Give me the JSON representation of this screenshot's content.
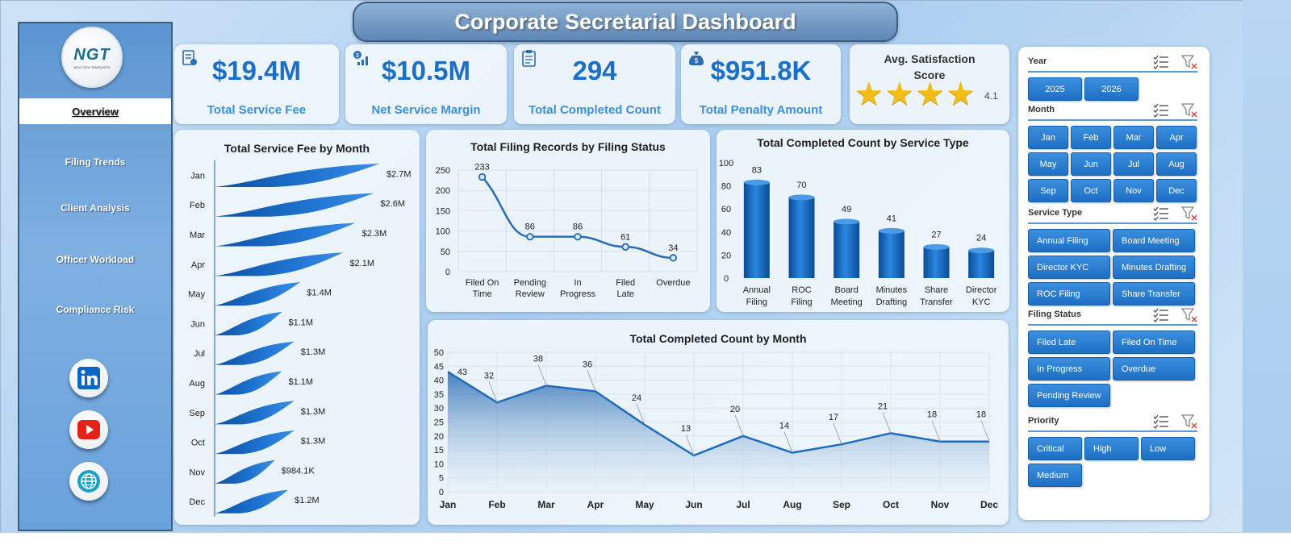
{
  "title": "Corporate Secretarial Dashboard",
  "logo": {
    "text": "NGT",
    "subtext": "NEXT GEN TEMPLATES"
  },
  "nav": [
    "Overview",
    "Filing Trends",
    "Client Analysis",
    "Officer Workload",
    "Compliance Risk"
  ],
  "social_icons": [
    "linkedin-icon",
    "youtube-icon",
    "globe-icon"
  ],
  "kpis": [
    {
      "value": "$19.4M",
      "label": "Total Service Fee",
      "icon": "invoice-icon"
    },
    {
      "value": "$10.5M",
      "label": "Net Service Margin",
      "icon": "money-growth-icon"
    },
    {
      "value": "294",
      "label": "Total Completed Count",
      "icon": "clipboard-icon"
    },
    {
      "value": "$951.8K",
      "label": "Total Penalty Amount",
      "icon": "money-bag-icon"
    }
  ],
  "satisfaction": {
    "title": "Avg. Satisfaction Score",
    "value": "4.1",
    "stars": 4
  },
  "colors": {
    "accent": "#1b6fc8",
    "bar": "#1565c0",
    "line": "#2a6db5",
    "star": "#f3bd16"
  },
  "chart_data": [
    {
      "type": "bar",
      "title": "Total Service Fee by Month",
      "orientation": "horizontal",
      "categories": [
        "Jan",
        "Feb",
        "Mar",
        "Apr",
        "May",
        "Jun",
        "Jul",
        "Aug",
        "Sep",
        "Oct",
        "Nov",
        "Dec"
      ],
      "values": [
        2.7,
        2.6,
        2.3,
        2.1,
        1.4,
        1.1,
        1.3,
        1.1,
        1.3,
        1.3,
        0.9841,
        1.2
      ],
      "labels": [
        "$2.7M",
        "$2.6M",
        "$2.3M",
        "$2.1M",
        "$1.4M",
        "$1.1M",
        "$1.3M",
        "$1.1M",
        "$1.3M",
        "$1.3M",
        "$984.1K",
        "$1.2M"
      ],
      "unit": "$M"
    },
    {
      "type": "line",
      "title": "Total Filing Records by Filing Status",
      "categories": [
        "Filed On Time",
        "Pending Review",
        "In Progress",
        "Filed Late",
        "Overdue"
      ],
      "values": [
        233,
        86,
        86,
        61,
        34
      ],
      "ylim": [
        0,
        250
      ],
      "yticks": [
        0,
        50,
        100,
        150,
        200,
        250
      ],
      "grid": true
    },
    {
      "type": "bar",
      "title": "Total Completed Count  by Service Type",
      "categories": [
        "Annual Filing",
        "ROC Filing",
        "Board Meeting",
        "Minutes Drafting",
        "Share Transfer",
        "Director KYC"
      ],
      "values": [
        83,
        70,
        49,
        41,
        27,
        24
      ],
      "ylim": [
        0,
        100
      ],
      "yticks": [
        0,
        20,
        40,
        60,
        80,
        100
      ]
    },
    {
      "type": "area",
      "title": "Total Completed Count  by Month",
      "categories": [
        "Jan",
        "Feb",
        "Mar",
        "Apr",
        "May",
        "Jun",
        "Jul",
        "Aug",
        "Sep",
        "Oct",
        "Nov",
        "Dec"
      ],
      "values": [
        43,
        32,
        38,
        36,
        24,
        13,
        20,
        14,
        17,
        21,
        18,
        18
      ],
      "ylim": [
        0,
        50
      ],
      "yticks": [
        0,
        5,
        10,
        15,
        20,
        25,
        30,
        35,
        40,
        45,
        50
      ],
      "grid": true
    }
  ],
  "slicers": [
    {
      "label": "Year",
      "items": [
        "2025",
        "2026"
      ]
    },
    {
      "label": "Month",
      "items": [
        "Jan",
        "Feb",
        "Mar",
        "Apr",
        "May",
        "Jun",
        "Jul",
        "Aug",
        "Sep",
        "Oct",
        "Nov",
        "Dec"
      ]
    },
    {
      "label": "Service Type",
      "items": [
        "Annual Filing",
        "Board Meeting",
        "Director KYC",
        "Minutes Drafting",
        "ROC Filing",
        "Share Transfer"
      ]
    },
    {
      "label": "Filing Status",
      "items": [
        "Filed Late",
        "Filed On Time",
        "In Progress",
        "Overdue",
        "Pending Review"
      ]
    },
    {
      "label": "Priority",
      "items": [
        "Critical",
        "High",
        "Low",
        "Medium"
      ]
    }
  ]
}
